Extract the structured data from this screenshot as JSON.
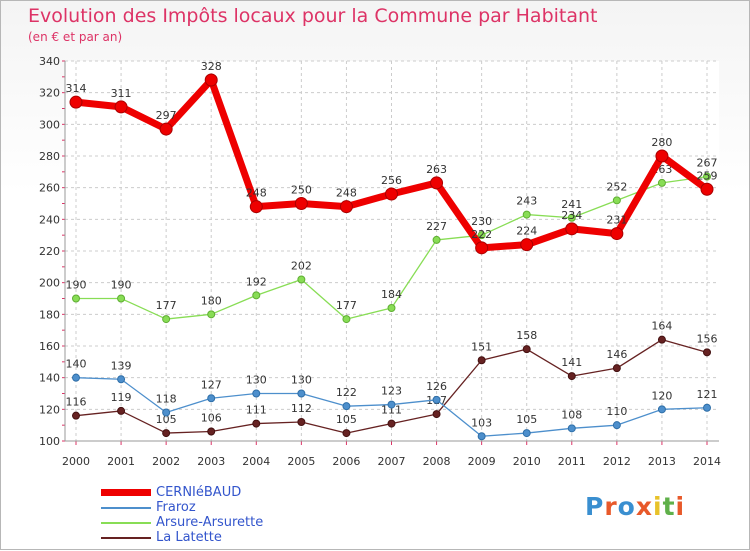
{
  "title": "Evolution des Impôts locaux pour la Commune par Habitant",
  "subtitle": "(en € et par an)",
  "logo": {
    "text": "Proxiti",
    "letter_colors": [
      "#3a8fd0",
      "#e8592a",
      "#3a8fd0",
      "#e8592a",
      "#e8c22a",
      "#5fb04a",
      "#e8592a"
    ]
  },
  "chart_data": {
    "type": "line",
    "x": [
      "2000",
      "2001",
      "2002",
      "2003",
      "2004",
      "2005",
      "2006",
      "2007",
      "2008",
      "2009",
      "2010",
      "2011",
      "2012",
      "2013",
      "2014"
    ],
    "ylim": [
      100,
      340
    ],
    "yticks": [
      "100",
      "120",
      "140",
      "160",
      "180",
      "200",
      "220",
      "240",
      "260",
      "280",
      "300",
      "320",
      "340"
    ],
    "grid": true,
    "legend_position": "bottom-left",
    "series": [
      {
        "name": "CERNIéBAUD",
        "color": "#ee0000",
        "values": [
          314,
          311,
          297,
          328,
          248,
          250,
          248,
          256,
          263,
          222,
          224,
          234,
          231,
          280,
          259
        ],
        "labels": [
          "314",
          "311",
          "297",
          "328",
          "248",
          "250",
          "248",
          "256",
          "263",
          "222",
          "224",
          "234",
          "231",
          "280",
          "259"
        ]
      },
      {
        "name": "Fraroz",
        "color": "#4d8fcc",
        "values": [
          140,
          139,
          118,
          127,
          130,
          130,
          122,
          123,
          126,
          103,
          105,
          108,
          110,
          120,
          121
        ],
        "labels": [
          "140",
          "139",
          "118",
          "127",
          "130",
          "130",
          "122",
          "123",
          "126",
          "103",
          "105",
          "108",
          "110",
          "120",
          "121"
        ]
      },
      {
        "name": "Arsure-Arsurette",
        "color": "#88dd55",
        "values": [
          190,
          190,
          177,
          180,
          192,
          202,
          177,
          184,
          227,
          230,
          243,
          241,
          252,
          263,
          267
        ],
        "labels": [
          "190",
          "190",
          "177",
          "180",
          "192",
          "202",
          "177",
          "184",
          "227",
          "230",
          "243",
          "241",
          "252",
          "263",
          "267"
        ]
      },
      {
        "name": "La Latette",
        "color": "#662222",
        "values": [
          116,
          119,
          105,
          106,
          111,
          112,
          105,
          111,
          117,
          151,
          158,
          141,
          146,
          164,
          156
        ],
        "labels": [
          "116",
          "119",
          "105",
          "106",
          "111",
          "112",
          "105",
          "111",
          "117",
          "151",
          "158",
          "141",
          "146",
          "164",
          "156"
        ]
      }
    ]
  }
}
